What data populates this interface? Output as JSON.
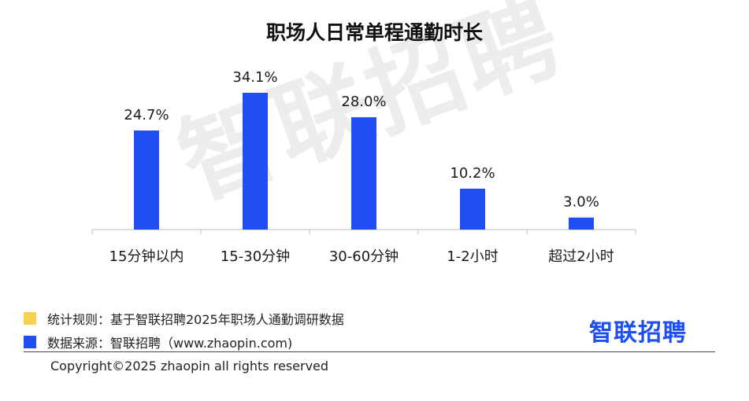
{
  "chart_data": {
    "type": "bar",
    "title": "职场人日常单程通勤时长",
    "categories": [
      "15分钟以内",
      "15-30分钟",
      "30-60分钟",
      "1-2小时",
      "超过2小时"
    ],
    "values": [
      24.7,
      34.1,
      28.0,
      10.2,
      3.0
    ],
    "data_labels": [
      "24.7%",
      "34.1%",
      "28.0%",
      "10.2%",
      "3.0%"
    ],
    "ylim": [
      0,
      34.1
    ],
    "xlabel": "",
    "ylabel": "",
    "grid": false,
    "bar_color": "#1f4ff0"
  },
  "watermark": "智联招聘",
  "legend": {
    "items": [
      {
        "label": "统计规则：基于智联招聘2025年职场人通勤调研数据",
        "color": "#f7d24f"
      },
      {
        "label": "数据来源：智联招聘（www.zhaopin.com)",
        "color": "#1f4ff0"
      }
    ]
  },
  "logo": "智联招聘",
  "copyright": "Copyright©2025 zhaopin all rights reserved"
}
